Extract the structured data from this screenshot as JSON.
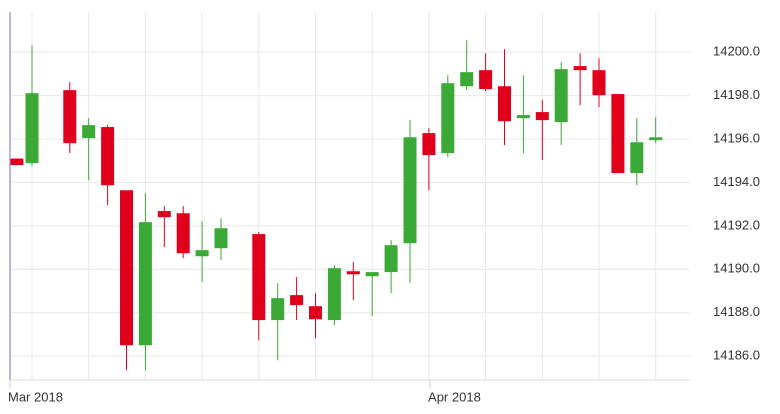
{
  "chart_data": {
    "type": "candlestick",
    "x": [
      0.2,
      1,
      3,
      4,
      5,
      6,
      7,
      8,
      9,
      10,
      11,
      13,
      14,
      15,
      16,
      17,
      18,
      19,
      20,
      21,
      22,
      23,
      24,
      25,
      26,
      27,
      28,
      29,
      30,
      31,
      32,
      33,
      34
    ],
    "open": [
      14195.1,
      14194.89,
      14198.25,
      14196.04,
      14196.55,
      14193.64,
      14186.5,
      14192.68,
      14192.58,
      14190.6,
      14190.97,
      14191.62,
      14187.66,
      14188.81,
      14188.3,
      14187.66,
      14189.91,
      14189.68,
      14189.87,
      14191.2,
      14196.27,
      14195.35,
      14198.43,
      14199.17,
      14198.43,
      14196.96,
      14197.24,
      14196.78,
      14199.36,
      14199.17,
      14198.07,
      14194.43,
      14195.95
    ],
    "high": [
      14195.1,
      14200.32,
      14198.62,
      14196.96,
      14196.64,
      14193.64,
      14193.51,
      14192.91,
      14192.91,
      14192.22,
      14192.35,
      14191.71,
      14189.36,
      14189.64,
      14188.9,
      14190.19,
      14190.33,
      14189.87,
      14191.34,
      14196.87,
      14196.5,
      14198.94,
      14200.55,
      14199.95,
      14200.14,
      14198.94,
      14197.79,
      14199.54,
      14199.95,
      14199.72,
      14198.07,
      14196.96,
      14197.01
    ],
    "low": [
      14194.8,
      14194.75,
      14195.35,
      14194.1,
      14192.95,
      14185.35,
      14185.35,
      14191.02,
      14190.51,
      14189.41,
      14190.42,
      14186.73,
      14185.81,
      14187.66,
      14186.83,
      14187.43,
      14188.58,
      14187.84,
      14188.9,
      14189.36,
      14193.64,
      14195.16,
      14198.25,
      14198.2,
      14195.72,
      14195.35,
      14195.03,
      14195.72,
      14197.56,
      14197.47,
      14194.43,
      14193.87,
      14195.81
    ],
    "close": [
      14194.8,
      14198.11,
      14195.81,
      14196.64,
      14193.87,
      14186.5,
      14192.17,
      14192.4,
      14190.74,
      14190.88,
      14191.89,
      14187.66,
      14188.67,
      14188.35,
      14187.7,
      14190.05,
      14189.77,
      14189.87,
      14191.11,
      14196.08,
      14195.26,
      14198.57,
      14199.08,
      14198.3,
      14196.82,
      14197.1,
      14196.87,
      14199.22,
      14199.17,
      14198.02,
      14194.43,
      14195.85,
      14196.08
    ],
    "up_color": "#3aa935",
    "down_color": "#e0001b",
    "xlim": [
      -0.164,
      35.815
    ],
    "xticks": [
      {
        "value": -0.164,
        "label": "Mar 2018"
      },
      {
        "value": 22.06,
        "label": "Apr 2018"
      }
    ],
    "ylim": [
      14184.9,
      14201.85
    ],
    "yticks": [
      {
        "value": 14186,
        "label": "14186.0"
      },
      {
        "value": 14188,
        "label": "14188.0"
      },
      {
        "value": 14190,
        "label": "14190.0"
      },
      {
        "value": 14192,
        "label": "14192.0"
      },
      {
        "value": 14194,
        "label": "14194.0"
      },
      {
        "value": 14196,
        "label": "14196.0"
      },
      {
        "value": 14198,
        "label": "14198.0"
      },
      {
        "value": 14200,
        "label": "14200.0"
      }
    ],
    "grid": true
  }
}
